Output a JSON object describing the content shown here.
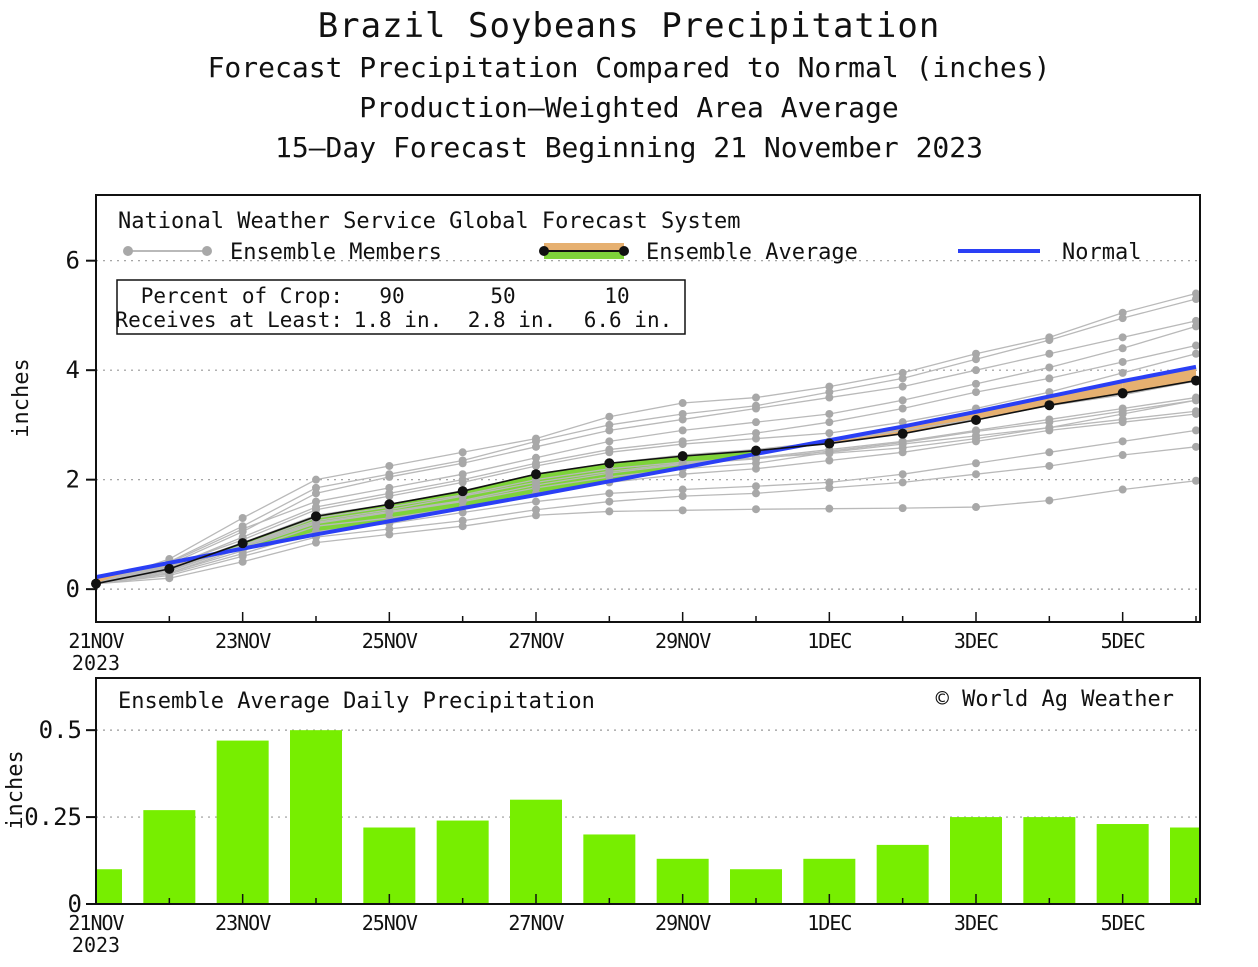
{
  "titles": {
    "line1": "Brazil Soybeans Precipitation",
    "line2": "Forecast Precipitation Compared to Normal (inches)",
    "line3": "Production—Weighted Area Average",
    "line4": "15—Day Forecast Beginning 21 November 2023"
  },
  "colors": {
    "members": "#b9b9b9",
    "average": "#111111",
    "normal": "#2a3ff5",
    "above_normal_fill": "#7ed33a",
    "below_normal_fill": "#e6b070",
    "bars": "#77ee00"
  },
  "x_ticks": [
    "21NOV",
    "23NOV",
    "25NOV",
    "27NOV",
    "29NOV",
    "1DEC",
    "3DEC",
    "5DEC"
  ],
  "x_year": "2023",
  "chart_data": [
    {
      "type": "line",
      "source_label": "National Weather Service Global Forecast System",
      "legend": {
        "members": "Ensemble Members",
        "average": "Ensemble Average",
        "normal": "Normal"
      },
      "ylabel": "inches",
      "ylim": [
        -0.6,
        7.2
      ],
      "yticks": [
        0,
        2,
        4,
        6
      ],
      "grid": "dotted horizontal",
      "percent_table": {
        "header": "Percent of Crop:",
        "row_label": "Receives at Least:",
        "percents": [
          "90",
          "50",
          "10"
        ],
        "amounts": [
          "1.8 in.",
          "2.8 in.",
          "6.6 in."
        ]
      },
      "x": [
        "21 Nov",
        "22 Nov",
        "23 Nov",
        "24 Nov",
        "25 Nov",
        "26 Nov",
        "27 Nov",
        "28 Nov",
        "29 Nov",
        "30 Nov",
        "1 Dec",
        "2 Dec",
        "3 Dec",
        "4 Dec",
        "5 Dec",
        "6 Dec"
      ],
      "normal": [
        0.22,
        0.48,
        0.74,
        1.0,
        1.24,
        1.48,
        1.72,
        1.97,
        2.22,
        2.47,
        2.72,
        2.97,
        3.24,
        3.52,
        3.8,
        4.06
      ],
      "ensemble_average": [
        0.1,
        0.37,
        0.84,
        1.33,
        1.55,
        1.79,
        2.1,
        2.3,
        2.43,
        2.53,
        2.66,
        2.84,
        3.09,
        3.36,
        3.58,
        3.81
      ],
      "members": [
        [
          0.1,
          0.38,
          0.85,
          1.35,
          1.55,
          1.8,
          2.1,
          2.3,
          2.45,
          2.55,
          2.7,
          2.9,
          3.1,
          3.35,
          3.55,
          3.8
        ],
        [
          0.1,
          0.45,
          1.05,
          1.75,
          2.05,
          2.3,
          2.6,
          2.9,
          3.1,
          3.3,
          3.5,
          3.7,
          4.0,
          4.3,
          4.6,
          4.9
        ],
        [
          0.1,
          0.55,
          1.3,
          2.0,
          2.25,
          2.5,
          2.75,
          3.15,
          3.4,
          3.5,
          3.7,
          3.95,
          4.3,
          4.6,
          5.05,
          5.4
        ],
        [
          0.1,
          0.5,
          1.15,
          1.85,
          2.1,
          2.35,
          2.7,
          3.0,
          3.2,
          3.35,
          3.6,
          3.85,
          4.2,
          4.55,
          4.95,
          5.3
        ],
        [
          0.1,
          0.3,
          0.7,
          1.15,
          1.3,
          1.5,
          1.75,
          1.95,
          2.1,
          2.2,
          2.35,
          2.5,
          2.7,
          2.9,
          3.05,
          3.2
        ],
        [
          0.1,
          0.2,
          0.5,
          0.85,
          1.0,
          1.15,
          1.35,
          1.42,
          1.44,
          1.46,
          1.47,
          1.48,
          1.5,
          1.62,
          1.82,
          1.98
        ],
        [
          0.1,
          0.25,
          0.6,
          0.95,
          1.1,
          1.25,
          1.45,
          1.6,
          1.7,
          1.75,
          1.85,
          1.95,
          2.1,
          2.25,
          2.45,
          2.6
        ],
        [
          0.1,
          0.35,
          0.8,
          1.25,
          1.45,
          1.7,
          1.95,
          2.15,
          2.3,
          2.4,
          2.55,
          2.7,
          2.9,
          3.1,
          3.3,
          3.5
        ],
        [
          0.1,
          0.4,
          0.95,
          1.5,
          1.75,
          2.0,
          2.3,
          2.55,
          2.7,
          2.85,
          3.05,
          3.3,
          3.6,
          3.85,
          4.15,
          4.45
        ],
        [
          0.1,
          0.3,
          0.75,
          1.2,
          1.4,
          1.6,
          1.85,
          2.05,
          2.2,
          2.3,
          2.5,
          2.65,
          2.8,
          2.95,
          3.1,
          3.25
        ],
        [
          0.1,
          0.42,
          0.9,
          1.45,
          1.7,
          1.95,
          2.25,
          2.5,
          2.65,
          2.75,
          2.85,
          3.05,
          3.3,
          3.6,
          3.95,
          4.3
        ],
        [
          0.1,
          0.35,
          0.8,
          1.3,
          1.5,
          1.72,
          2.0,
          2.2,
          2.32,
          2.4,
          2.48,
          2.58,
          2.75,
          2.95,
          3.2,
          3.45
        ],
        [
          0.1,
          0.28,
          0.65,
          1.05,
          1.2,
          1.4,
          1.6,
          1.75,
          1.82,
          1.88,
          1.95,
          2.1,
          2.3,
          2.5,
          2.7,
          2.9
        ],
        [
          0.1,
          0.48,
          1.1,
          1.6,
          1.85,
          2.1,
          2.4,
          2.7,
          2.9,
          3.05,
          3.2,
          3.45,
          3.75,
          4.05,
          4.4,
          4.8
        ],
        [
          0.1,
          0.33,
          0.78,
          1.22,
          1.42,
          1.62,
          1.9,
          2.12,
          2.28,
          2.38,
          2.52,
          2.68,
          2.88,
          3.05,
          3.25,
          3.45
        ]
      ]
    },
    {
      "type": "bar",
      "title": "Ensemble Average Daily Precipitation",
      "credit": "© World Ag Weather",
      "ylabel": "inches",
      "ylim": [
        0,
        0.65
      ],
      "yticks": [
        "0",
        "0.25",
        "0.5"
      ],
      "ytick_values": [
        0,
        0.25,
        0.5
      ],
      "grid": "dotted horizontal",
      "categories": [
        "21 Nov",
        "22 Nov",
        "23 Nov",
        "24 Nov",
        "25 Nov",
        "26 Nov",
        "27 Nov",
        "28 Nov",
        "29 Nov",
        "30 Nov",
        "1 Dec",
        "2 Dec",
        "3 Dec",
        "4 Dec",
        "5 Dec",
        "6 Dec"
      ],
      "values": [
        0.1,
        0.27,
        0.47,
        0.5,
        0.22,
        0.24,
        0.3,
        0.2,
        0.13,
        0.1,
        0.13,
        0.17,
        0.25,
        0.25,
        0.23,
        0.22
      ]
    }
  ]
}
